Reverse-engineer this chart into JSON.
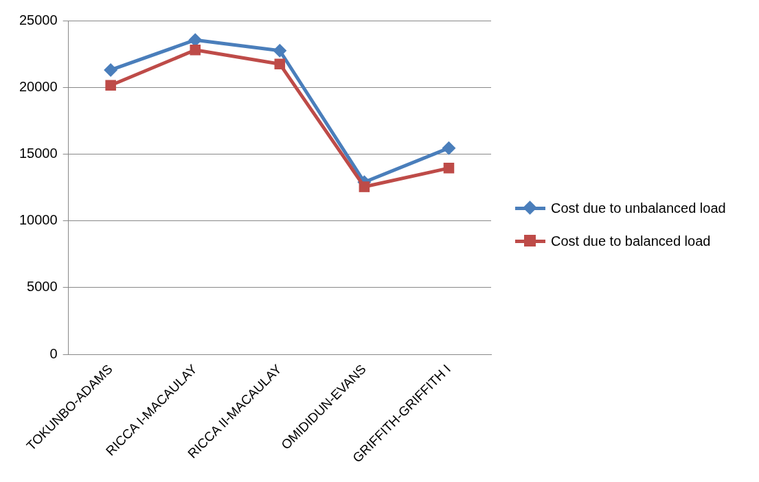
{
  "chart_data": {
    "type": "line",
    "categories": [
      "TOKUNBO-ADAMS",
      "RICCA I-MACAULAY",
      "RICCA II-MACAULAY",
      "OMIDIDUN-EVANS",
      "GRIFFITH-GRIFFITH I"
    ],
    "series": [
      {
        "name": "Cost due to unbalanced load",
        "color": "#4a7ebb",
        "marker": "diamond",
        "values": [
          21300,
          23550,
          22750,
          12900,
          15450
        ]
      },
      {
        "name": "Cost due to balanced load",
        "color": "#be4b48",
        "marker": "square",
        "values": [
          20150,
          22800,
          21750,
          12550,
          13950
        ]
      }
    ],
    "ylim": [
      0,
      25000
    ],
    "yticks": [
      0,
      5000,
      10000,
      15000,
      20000,
      25000
    ],
    "grid": "y",
    "legend": "right",
    "line_style": "solid"
  }
}
